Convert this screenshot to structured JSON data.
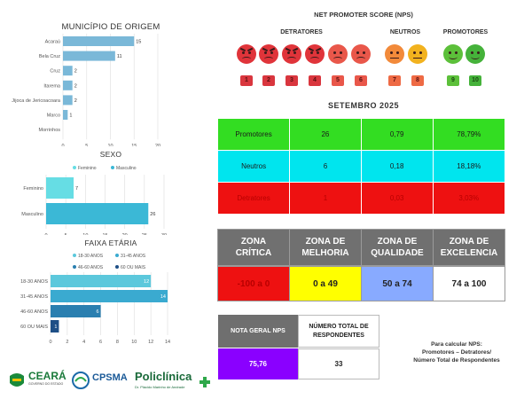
{
  "nps_header": {
    "title": "NET PROMOTER SCORE (NPS)",
    "detratores": "DETRATORES",
    "neutros": "NEUTROS",
    "promotores": "PROMOTORES",
    "scale": [
      "1",
      "2",
      "3",
      "4",
      "5",
      "6",
      "7",
      "8",
      "9",
      "10"
    ]
  },
  "period": "SETEMBRO 2025",
  "summary_table": [
    {
      "label": "Promotores",
      "count": "26",
      "ratio": "0,79",
      "percent": "78,79%",
      "bg": "#33dd22"
    },
    {
      "label": "Neutros",
      "count": "6",
      "ratio": "0,18",
      "percent": "18,18%",
      "bg": "#00e5ee"
    },
    {
      "label": "Detratores",
      "count": "1",
      "ratio": "0,03",
      "percent": "3,03%",
      "bg": "#ee1111"
    }
  ],
  "zones": {
    "titles": [
      "ZONA CRÍTICA",
      "ZONA DE MELHORIA",
      "ZONA DE QUALIDADE",
      "ZONA DE EXCELENCIA"
    ],
    "values": [
      "-100 a 0",
      "0 a 49",
      "50 a 74",
      "74 a 100"
    ],
    "colors": [
      "#ee1111",
      "#ffff00",
      "#88aaff",
      "#ffffff"
    ]
  },
  "score": {
    "nps_label": "NOTA GERAL NPS",
    "nps_value": "75,76",
    "total_label": "NÚMERO TOTAL DE RESPONDENTES",
    "total_value": "33"
  },
  "formula": {
    "line1": "Para calcular NPS:",
    "line2": "Promotores – Detratores/",
    "line3": "Número Total de Respondentes"
  },
  "logos": {
    "ceara": "CEARÁ",
    "ceara_sub": "GOVERNO DO ESTADO",
    "cpsma": "CPSMA",
    "policlinica": "Policlínica",
    "policlinica_sub": "Dr. Plácido Marinho de Andrade"
  },
  "chart_data": [
    {
      "type": "bar",
      "orientation": "horizontal",
      "title": "MUNICÍPIO DE ORIGEM",
      "categories": [
        "Acaraú",
        "Bela Cruz",
        "Cruz",
        "Itarema",
        "Jijoca de Jericoacoara",
        "Marco",
        "Morrinhos"
      ],
      "values": [
        15,
        11,
        2,
        2,
        2,
        1,
        0
      ],
      "xlim": [
        0,
        20
      ],
      "xticks": [
        0,
        5,
        10,
        15,
        20
      ],
      "colors": [
        "#7ab8d8"
      ],
      "grid": true
    },
    {
      "type": "bar",
      "orientation": "horizontal",
      "title": "SEXO",
      "categories": [
        "Feminino",
        "Masculino"
      ],
      "values": [
        7,
        26
      ],
      "legend": [
        "Feminino",
        "Masculino"
      ],
      "legend_position": "top",
      "colors": [
        "#66dde4",
        "#3bb8d6"
      ],
      "xlim": [
        0,
        30
      ],
      "xticks": [
        0,
        5,
        10,
        15,
        20,
        25,
        30
      ],
      "grid": true
    },
    {
      "type": "bar",
      "orientation": "horizontal",
      "title": "FAIXA ETÁRIA",
      "categories": [
        "18-30 ANOS",
        "31-45 ANOS",
        "46-60 ANOS",
        "60 OU MAIS"
      ],
      "values": [
        12,
        14,
        6,
        1
      ],
      "legend": [
        "18-30 ANOS",
        "31-45 ANOS",
        "46-60 ANOS",
        "60 OU MAIS"
      ],
      "legend_position": "top",
      "colors": [
        "#5cc8dc",
        "#3aaad0",
        "#2a7fb0",
        "#1e4f86"
      ],
      "xlim": [
        0,
        14
      ],
      "xticks": [
        0,
        2,
        4,
        6,
        8,
        10,
        12,
        14
      ],
      "grid": true
    }
  ]
}
